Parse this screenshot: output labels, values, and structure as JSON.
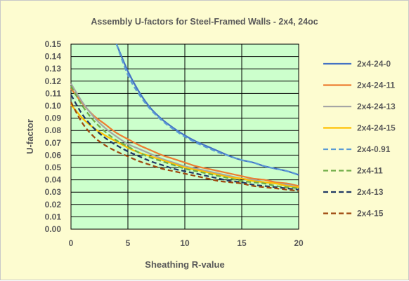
{
  "chart_data": {
    "type": "line",
    "title": "Assembly U-factors for Steel-Framed Walls - 2x4, 24oc",
    "xlabel": "Sheathing R-value",
    "ylabel": "U-factor",
    "xlim": [
      0,
      20
    ],
    "ylim": [
      0,
      0.15
    ],
    "x_ticks": [
      "0",
      "5",
      "10",
      "15",
      "20"
    ],
    "y_ticks": [
      "0.00",
      "0.01",
      "0.02",
      "0.03",
      "0.04",
      "0.05",
      "0.06",
      "0.07",
      "0.08",
      "0.09",
      "0.10",
      "0.11",
      "0.12",
      "0.13",
      "0.14",
      "0.15"
    ],
    "grid": true,
    "plot_background": "#ccffcc",
    "legend_position": "right",
    "x": [
      0,
      1,
      2,
      3,
      4,
      5,
      6,
      7,
      8,
      9,
      10,
      11,
      12,
      13,
      14,
      15,
      16,
      17,
      18,
      19,
      20
    ],
    "series": [
      {
        "name": "2x4-24-0",
        "color": "#4472c4",
        "dash": "solid",
        "values": [
          null,
          null,
          null,
          null,
          0.15,
          0.128,
          0.111,
          0.098,
          0.089,
          0.082,
          0.076,
          0.071,
          0.067,
          0.063,
          0.059,
          0.056,
          0.054,
          0.051,
          0.049,
          0.047,
          0.044
        ]
      },
      {
        "name": "2x4-24-11",
        "color": "#ed7d31",
        "dash": "solid",
        "values": [
          0.114,
          0.102,
          0.092,
          0.085,
          0.078,
          0.073,
          0.068,
          0.064,
          0.06,
          0.057,
          0.054,
          0.051,
          0.049,
          0.047,
          0.045,
          0.043,
          0.041,
          0.04,
          0.038,
          0.037,
          0.035
        ]
      },
      {
        "name": "2x4-24-13",
        "color": "#a5a5a5",
        "dash": "solid",
        "values": [
          0.118,
          0.103,
          0.091,
          0.082,
          0.075,
          0.069,
          0.065,
          0.061,
          0.057,
          0.054,
          0.051,
          0.049,
          0.047,
          0.045,
          0.043,
          0.041,
          0.04,
          0.038,
          0.037,
          0.036,
          0.034
        ]
      },
      {
        "name": "2x4-24-15",
        "color": "#ffc000",
        "dash": "solid",
        "values": [
          0.101,
          0.09,
          0.082,
          0.076,
          0.071,
          0.066,
          0.062,
          0.059,
          0.056,
          0.053,
          0.05,
          0.048,
          0.046,
          0.044,
          0.042,
          0.041,
          0.039,
          0.038,
          0.037,
          0.035,
          0.034
        ]
      },
      {
        "name": "2x4-0.91",
        "color": "#5b9bd5",
        "dash": "dash",
        "values": [
          null,
          null,
          null,
          null,
          0.15,
          0.125,
          0.109,
          0.097,
          0.088,
          0.081,
          0.075,
          0.07,
          0.066,
          0.062,
          0.059,
          0.056,
          0.054,
          0.051,
          0.049,
          0.047,
          0.044
        ]
      },
      {
        "name": "2x4-11",
        "color": "#70ad47",
        "dash": "dash",
        "values": [
          0.116,
          0.1,
          0.088,
          0.079,
          0.072,
          0.067,
          0.062,
          0.058,
          0.055,
          0.052,
          0.049,
          0.047,
          0.045,
          0.043,
          0.041,
          0.039,
          0.038,
          0.037,
          0.035,
          0.034,
          0.033
        ]
      },
      {
        "name": "2x4-13",
        "color": "#203864",
        "dash": "dash",
        "values": [
          0.109,
          0.093,
          0.082,
          0.074,
          0.068,
          0.063,
          0.059,
          0.055,
          0.052,
          0.049,
          0.047,
          0.045,
          0.043,
          0.041,
          0.039,
          0.038,
          0.036,
          0.035,
          0.034,
          0.033,
          0.032
        ]
      },
      {
        "name": "2x4-15",
        "color": "#9e480e",
        "dash": "dash",
        "values": [
          0.103,
          0.086,
          0.075,
          0.068,
          0.063,
          0.059,
          0.055,
          0.052,
          0.049,
          0.047,
          0.045,
          0.043,
          0.041,
          0.039,
          0.038,
          0.037,
          0.035,
          0.034,
          0.033,
          0.032,
          0.031
        ]
      }
    ]
  }
}
